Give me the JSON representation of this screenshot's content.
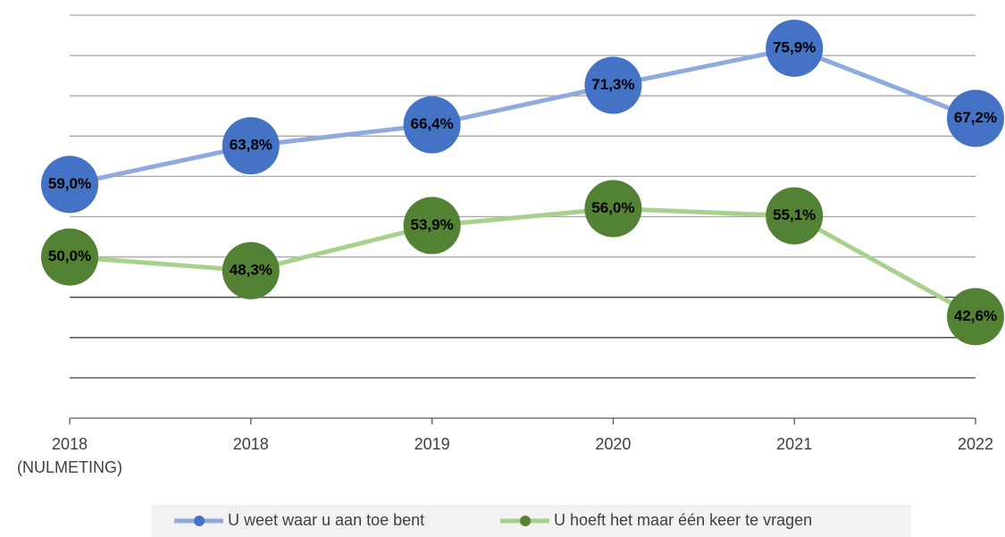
{
  "chart_data": {
    "type": "line",
    "categories": [
      "2018\n(NULMETING)",
      "2018",
      "2019",
      "2020",
      "2021",
      "2022"
    ],
    "series": [
      {
        "name": "U weet waar u aan toe bent",
        "color": "#8faadc",
        "marker_color": "#4472c4",
        "values": [
          59.0,
          63.8,
          66.4,
          71.3,
          75.9,
          67.2
        ],
        "value_labels": [
          "59,0%",
          "63,8%",
          "66,4%",
          "71,3%",
          "75,9%",
          "67,2%"
        ]
      },
      {
        "name": "U hoeft het maar één keer te vragen",
        "color": "#a9d18e",
        "marker_color": "#548235",
        "values": [
          50.0,
          48.3,
          53.9,
          56.0,
          55.1,
          42.6
        ],
        "value_labels": [
          "50,0%",
          "48,3%",
          "53,9%",
          "56,0%",
          "55,1%",
          "42,6%"
        ]
      }
    ],
    "ylim": [
      30,
      80
    ],
    "yticks": [
      30,
      35,
      40,
      45,
      50,
      55,
      60,
      65,
      70,
      75,
      80
    ],
    "grid": true,
    "legend": "bottom"
  }
}
